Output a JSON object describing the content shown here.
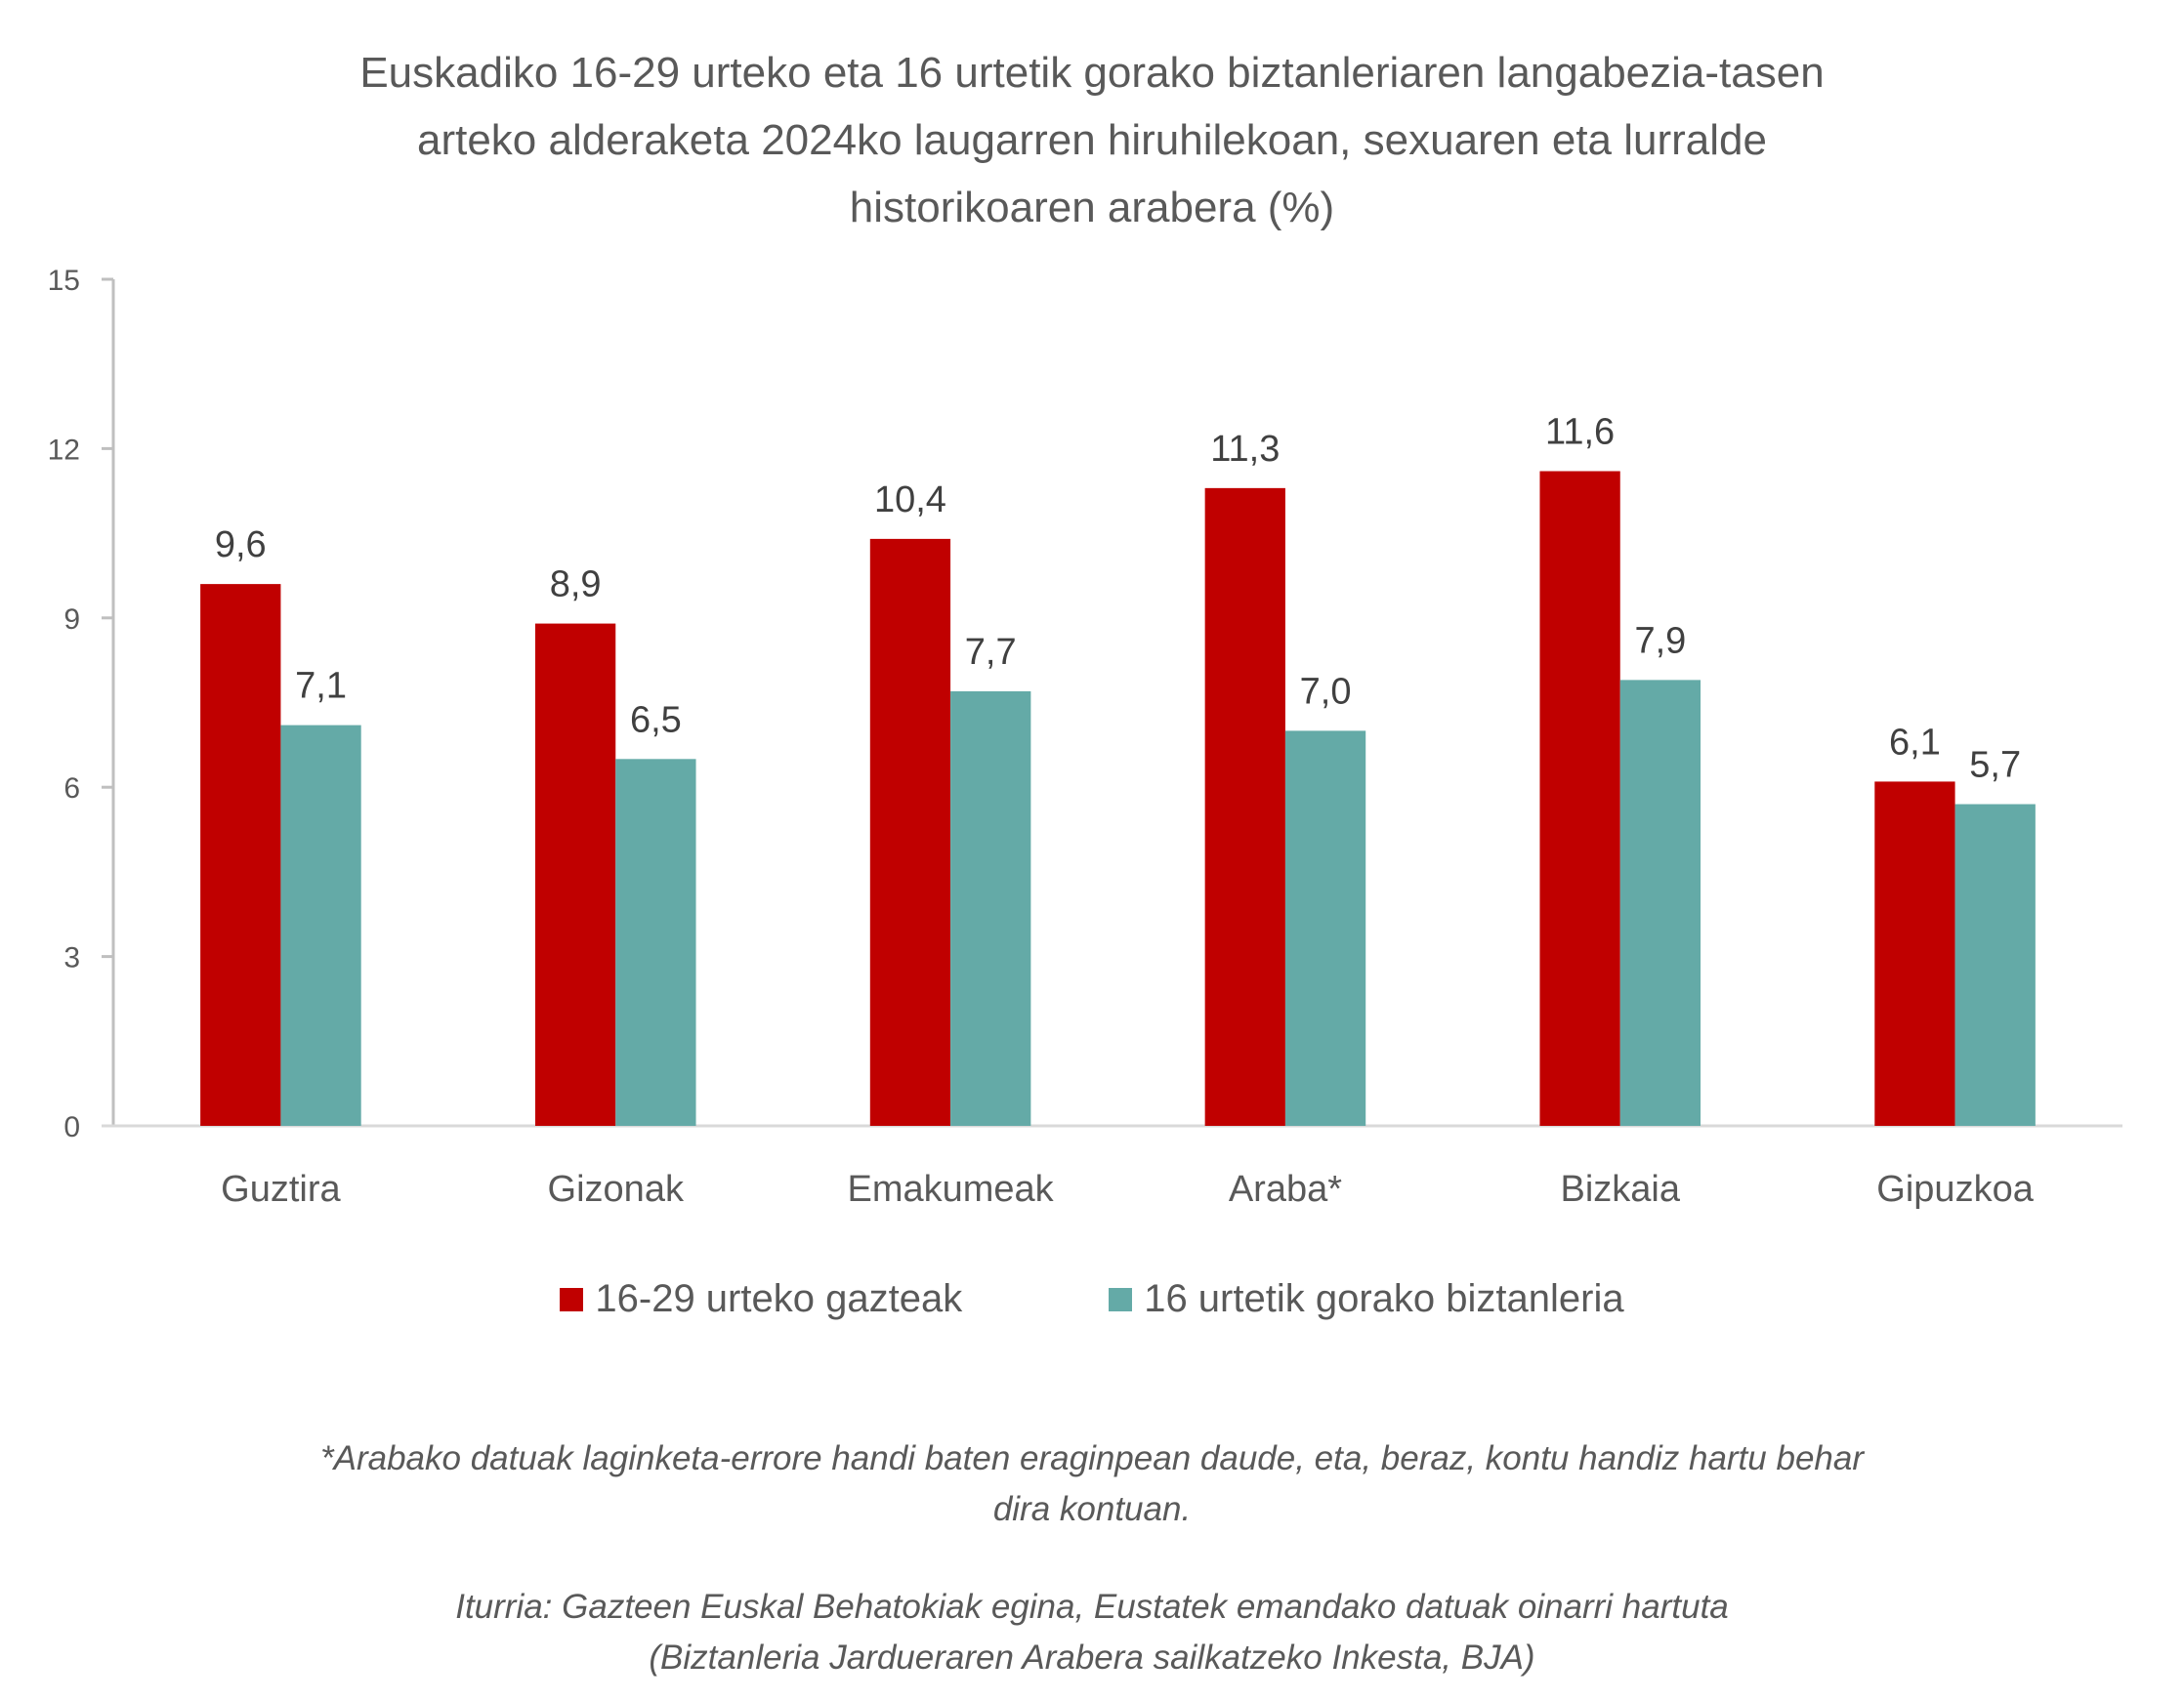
{
  "title_lines": [
    "Euskadiko 16-29 urteko eta 16 urtetik gorako biztanleriaren langabezia-tasen",
    "arteko alderaketa 2024ko laugarren hiruhilekoan, sexuaren eta lurralde",
    "historikoaren arabera  (%)"
  ],
  "colors": {
    "series_1": "#C00000",
    "series_2": "#64AAA7",
    "axis": "#BFBFBF",
    "text": "#595959"
  },
  "chart_data": {
    "type": "bar",
    "title": "Euskadiko 16-29 urteko eta 16 urtetik gorako biztanleriaren langabezia-tasen arteko alderaketa 2024ko laugarren hiruhilekoan, sexuaren eta lurralde historikoaren arabera  (%)",
    "categories": [
      "Guztira",
      "Gizonak",
      "Emakumeak",
      "Araba*",
      "Bizkaia",
      "Gipuzkoa"
    ],
    "series": [
      {
        "name": "16-29 urteko gazteak",
        "values": [
          9.6,
          8.9,
          10.4,
          11.3,
          11.6,
          6.1
        ],
        "labels": [
          "9,6",
          "8,9",
          "10,4",
          "11,3",
          "11,6",
          "6,1"
        ]
      },
      {
        "name": "16 urtetik gorako biztanleria",
        "values": [
          7.1,
          6.5,
          7.7,
          7.0,
          7.9,
          5.7
        ],
        "labels": [
          "7,1",
          "6,5",
          "7,7",
          "7,0",
          "7,9",
          "5,7"
        ]
      }
    ],
    "xlabel": "",
    "ylabel": "",
    "ylim": [
      0,
      15
    ],
    "yticks": [
      0,
      3,
      6,
      9,
      12,
      15
    ],
    "grid": false,
    "legend_position": "bottom"
  },
  "legend": [
    {
      "label": "16-29 urteko gazteak"
    },
    {
      "label": "16 urtetik gorako biztanleria"
    }
  ],
  "footnote": {
    "note_lines": [
      "*Arabako datuak laginketa-errore handi baten eraginpean daude, eta, beraz, kontu handiz hartu behar",
      "dira kontuan."
    ],
    "source_lines": [
      "Iturria: Gazteen Euskal Behatokiak egina, Eustatek emandako datuak oinarri hartuta",
      "(Biztanleria Jarduera­ren Arabera sailkatzeko Inkesta, BJA)"
    ]
  }
}
